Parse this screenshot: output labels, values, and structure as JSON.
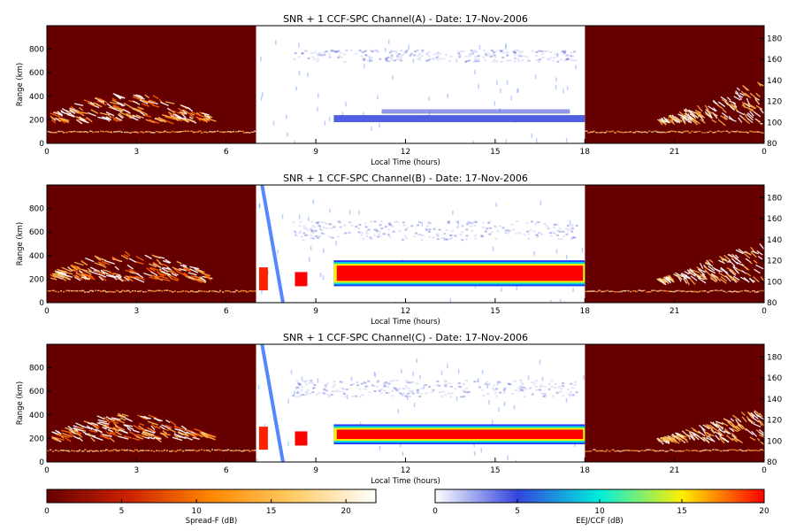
{
  "chart_data": [
    {
      "type": "heatmap",
      "title": "SNR + 1 CCF-SPC Channel(A) - Date: 17-Nov-2006",
      "xlabel": "Local Time (hours)",
      "ylabel": "Range (km)",
      "x_ticks": [
        "0",
        "3",
        "6",
        "9",
        "12",
        "15",
        "18",
        "21",
        "0"
      ],
      "xlim": [
        0,
        24
      ],
      "ylim": [
        0,
        1000
      ],
      "y_ticks": [
        0,
        200,
        400,
        600,
        800
      ],
      "y2_ticks": [
        80,
        100,
        120,
        140,
        160,
        180
      ],
      "y2lim": [
        80,
        192
      ],
      "night_colorscale": "Spread-F (dB)",
      "day_colorscale": "EEJ/CCF (dB)",
      "day_window_hours": [
        7,
        18
      ],
      "features": {
        "night_layer_km": [
          100,
          110
        ],
        "spread_f_left_max_km": 440,
        "spread_f_right_max_km": 560,
        "eej_range_km": [
          180,
          240
        ],
        "eej_peak_dB": 8,
        "upper_echo_km": [
          700,
          800
        ]
      }
    },
    {
      "type": "heatmap",
      "title": "SNR + 1 CCF-SPC Channel(B) - Date: 17-Nov-2006",
      "xlabel": "Local Time (hours)",
      "ylabel": "Range (km)",
      "x_ticks": [
        "0",
        "3",
        "6",
        "9",
        "12",
        "15",
        "18",
        "21",
        "0"
      ],
      "xlim": [
        0,
        24
      ],
      "ylim": [
        0,
        1000
      ],
      "y_ticks": [
        0,
        200,
        400,
        600,
        800
      ],
      "y2_ticks": [
        80,
        100,
        120,
        140,
        160,
        180
      ],
      "y2lim": [
        80,
        192
      ],
      "night_colorscale": "Spread-F (dB)",
      "day_colorscale": "EEJ/CCF (dB)",
      "day_window_hours": [
        7,
        18
      ],
      "features": {
        "night_layer_km": [
          100,
          110
        ],
        "spread_f_left_max_km": 440,
        "spread_f_right_max_km": 540,
        "eej_range_km": [
          140,
          360
        ],
        "eej_peak_dB": 20,
        "upper_echo_km": [
          540,
          700
        ]
      }
    },
    {
      "type": "heatmap",
      "title": "SNR + 1 CCF-SPC Channel(C) - Date: 17-Nov-2006",
      "xlabel": "Local Time (hours)",
      "ylabel": "Range (km)",
      "x_ticks": [
        "0",
        "3",
        "6",
        "9",
        "12",
        "15",
        "18",
        "21",
        "0"
      ],
      "xlim": [
        0,
        24
      ],
      "ylim": [
        0,
        1000
      ],
      "y_ticks": [
        0,
        200,
        400,
        600,
        800
      ],
      "y2_ticks": [
        80,
        100,
        120,
        140,
        160,
        180
      ],
      "y2lim": [
        80,
        192
      ],
      "night_colorscale": "Spread-F (dB)",
      "day_colorscale": "EEJ/CCF (dB)",
      "day_window_hours": [
        7,
        18
      ],
      "features": {
        "night_layer_km": [
          100,
          110
        ],
        "spread_f_left_max_km": 420,
        "spread_f_right_max_km": 480,
        "eej_range_km": [
          150,
          320
        ],
        "eej_peak_dB": 20,
        "upper_echo_km": [
          560,
          700
        ]
      }
    }
  ],
  "colorbars": [
    {
      "label": "Spread-F (dB)",
      "ticks": [
        "0",
        "5",
        "10",
        "15",
        "20"
      ],
      "range": [
        0,
        22
      ],
      "colors": [
        "#660000",
        "#cc2200",
        "#ff8800",
        "#ffcc66",
        "#ffffff"
      ]
    },
    {
      "label": "EEJ/CCF (dB)",
      "ticks": [
        "0",
        "5",
        "10",
        "15",
        "20"
      ],
      "range": [
        0,
        20
      ],
      "colors": [
        "#ffffff",
        "#3344dd",
        "#00eedd",
        "#ffee00",
        "#ff0000"
      ]
    }
  ]
}
